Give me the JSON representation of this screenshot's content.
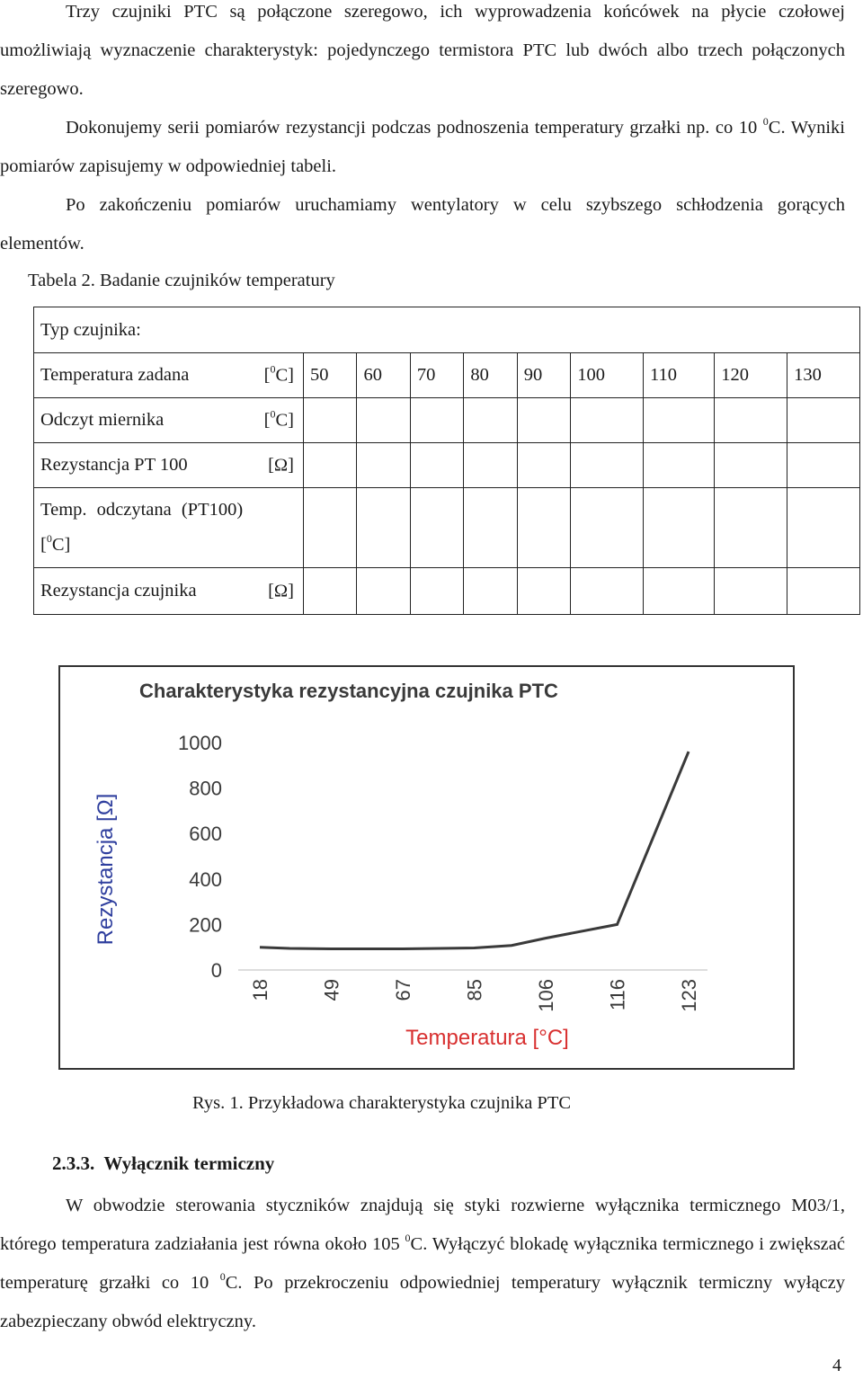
{
  "intro": {
    "p1": "Trzy czujniki PTC są połączone szeregowo, ich wyprowadzenia końcówek na płycie czołowej umożliwiają wyznaczenie charakterystyk: pojedynczego termistora PTC lub dwóch albo trzech połączonych szeregowo.",
    "p2_a": "Dokonujemy serii pomiarów rezystancji podczas podnoszenia temperatury grzałki np. co 10 ",
    "p2_sup": "0",
    "p2_b": "C. Wyniki pomiarów zapisujemy w odpowiedniej tabeli.",
    "p3": "Po zakończeniu pomiarów uruchamiamy wentylatory w celu szybszego schłodzenia gorących elementów."
  },
  "table": {
    "caption": "Tabela 2. Badanie czujników temperatury",
    "type_label": "Typ czujnika:",
    "row_temp_label": "Temperatura zadana",
    "row_temp_unit_a": "[",
    "row_temp_unit_sup": "0",
    "row_temp_unit_b": "C]",
    "temps": [
      "50",
      "60",
      "70",
      "80",
      "90",
      "100",
      "110",
      "120",
      "130"
    ],
    "row_meter_label": "Odczyt miernika",
    "row_meter_unit_a": "[",
    "row_meter_unit_sup": "0",
    "row_meter_unit_b": "C]",
    "row_pt_label": "Rezystancja PT 100",
    "row_pt_unit": "[Ω]",
    "row_read_label": "Temp.  odczytana  (PT100)",
    "row_read_unit_a": "[",
    "row_read_unit_sup": "0",
    "row_read_unit_b": "C]",
    "row_sensor_label": "Rezystancja czujnika",
    "row_sensor_unit": "[Ω]"
  },
  "chart_data": {
    "type": "line",
    "title": "Charakterystyka rezystancyjna czujnika PTC",
    "xlabel": "Temperatura [°C]",
    "ylabel": "Rezystancja [Ω]",
    "categories": [
      "18",
      "49",
      "67",
      "85",
      "106",
      "116",
      "123"
    ],
    "x": [
      18,
      31,
      49,
      67,
      85,
      96,
      106,
      116,
      123
    ],
    "values": [
      100,
      95,
      93,
      93,
      97,
      108,
      140,
      200,
      960
    ],
    "ylim": [
      0,
      1000
    ],
    "yticks": [
      "0",
      "200",
      "400",
      "600",
      "800",
      "1000"
    ],
    "grid": false,
    "line_color": "#3a3a3a"
  },
  "figure_caption": "Rys. 1. Przykładowa charakterystyka czujnika PTC",
  "section": {
    "number": "2.3.3.",
    "title": "Wyłącznik termiczny",
    "p_a": "W obwodzie sterowania styczników znajdują się styki rozwierne wyłącznika termicznego M03/1, którego temperatura zadziałania jest równa około 105 ",
    "p_sup1": "0",
    "p_b": "C. Wyłączyć blokadę wyłącznika termicznego i zwiększać temperaturę grzałki co 10 ",
    "p_sup2": "0",
    "p_c": "C. Po przekroczeniu odpowiedniej temperatury wyłącznik termiczny wyłączy zabezpieczany obwód elektryczny."
  },
  "page_number": "4"
}
